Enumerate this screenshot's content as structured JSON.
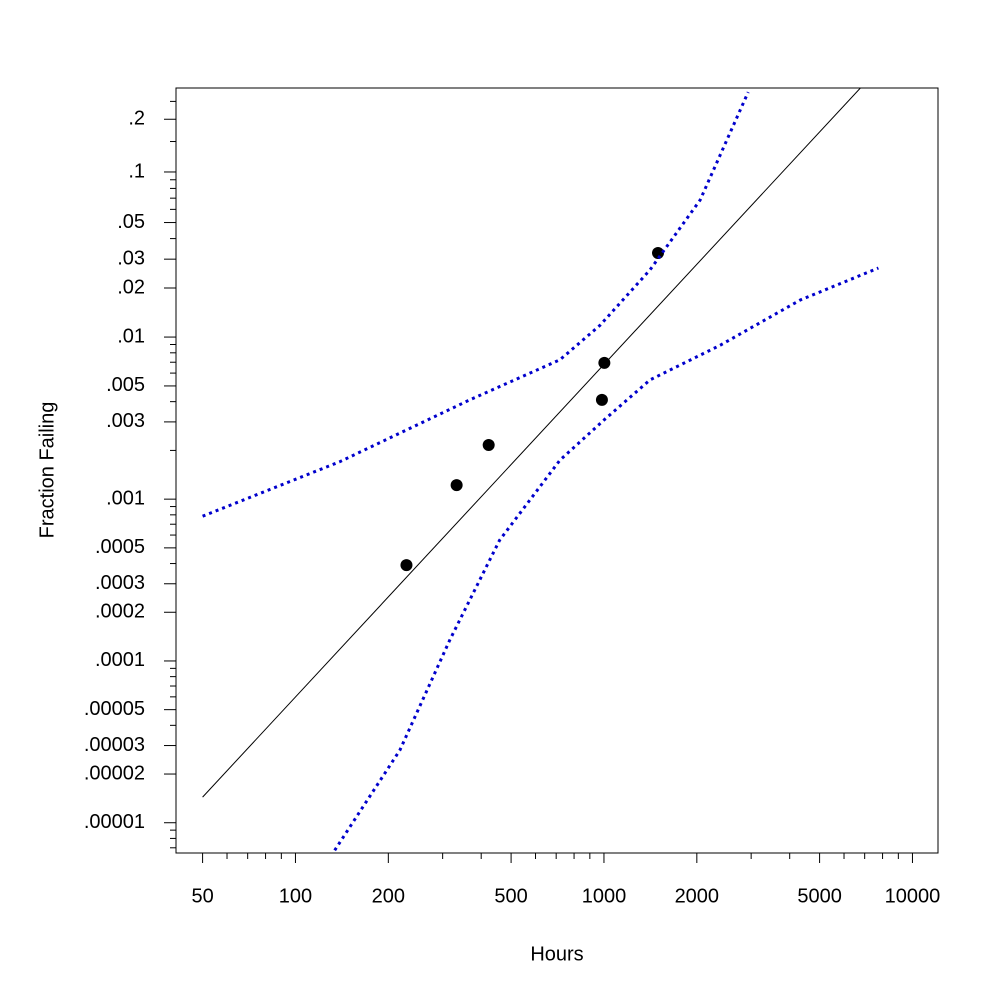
{
  "chart_data": {
    "type": "probability",
    "xlabel": "Hours",
    "ylabel": "Fraction Failing",
    "xscale": "log",
    "yscale": "weibull",
    "xlim": [
      41,
      12100
    ],
    "ylim": [
      6.5e-06,
      0.294
    ],
    "xticks": [
      50,
      100,
      200,
      500,
      1000,
      2000,
      5000,
      10000
    ],
    "xminor_ticks": [
      60,
      70,
      80,
      90,
      300,
      400,
      600,
      700,
      800,
      900,
      3000,
      4000,
      6000,
      7000,
      8000,
      9000
    ],
    "yticks": [
      {
        "value": 0.2,
        "label": ".2"
      },
      {
        "value": 0.1,
        "label": ".1"
      },
      {
        "value": 0.05,
        "label": ".05"
      },
      {
        "value": 0.03,
        "label": ".03"
      },
      {
        "value": 0.02,
        "label": ".02"
      },
      {
        "value": 0.01,
        "label": ".01"
      },
      {
        "value": 0.005,
        "label": ".005"
      },
      {
        "value": 0.003,
        "label": ".003"
      },
      {
        "value": 0.001,
        "label": ".001"
      },
      {
        "value": 0.0005,
        "label": ".0005"
      },
      {
        "value": 0.0003,
        "label": ".0003"
      },
      {
        "value": 0.0002,
        "label": ".0002"
      },
      {
        "value": 0.0001,
        "label": ".0001"
      },
      {
        "value": 5e-05,
        "label": ".00005"
      },
      {
        "value": 3e-05,
        "label": ".00003"
      },
      {
        "value": 2e-05,
        "label": ".00002"
      },
      {
        "value": 1e-05,
        "label": ".00001"
      }
    ],
    "yminor_ticks": [
      0.25,
      0.15,
      0.09,
      0.08,
      0.07,
      0.06,
      0.04,
      0.009,
      0.008,
      0.007,
      0.006,
      0.004,
      0.002,
      0.0009,
      0.0008,
      0.0007,
      0.0006,
      0.0004,
      9e-05,
      8e-05,
      7e-05,
      6e-05,
      4e-05,
      9e-06,
      8e-06,
      7e-06
    ],
    "series": [
      {
        "style": "points",
        "color": "#000000",
        "x": [
          229,
          333,
          423,
          985,
          1003,
          1497
        ],
        "values": [
          0.000391,
          0.00122,
          0.00216,
          0.0041,
          0.00694,
          0.0327
        ]
      },
      {
        "style": "line",
        "color": "#000000",
        "x": [
          50,
          6780
        ],
        "values": [
          1.44e-05,
          0.294
        ]
      },
      {
        "style": "dotted",
        "color": "#0000cc",
        "x": [
          50,
          139,
          367,
          720,
          970,
          1410,
          2050,
          2935
        ],
        "values": [
          0.000785,
          0.0017,
          0.0041,
          0.00725,
          0.0118,
          0.0258,
          0.0682,
          0.28
        ]
      },
      {
        "style": "dotted",
        "color": "#0000cc",
        "x": [
          134,
          218,
          316,
          459,
          720,
          1000,
          1410,
          2380,
          4330,
          7757
        ],
        "values": [
          6.75e-06,
          2.81e-05,
          0.000134,
          0.000558,
          0.00174,
          0.00308,
          0.00545,
          0.0089,
          0.0169,
          0.0265
        ]
      }
    ]
  }
}
